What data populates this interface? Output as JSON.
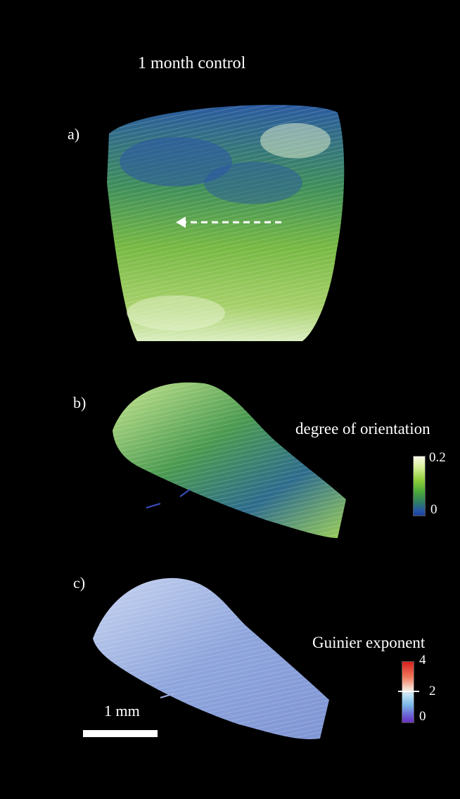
{
  "title": "1 month control",
  "panels": [
    {
      "label": "a)"
    },
    {
      "label": "b)"
    },
    {
      "label": "c)"
    }
  ],
  "colorbars": {
    "orientation": {
      "title": "degree of orientation",
      "max": "0.2",
      "min": "0",
      "colors": [
        "#f8fbe8",
        "#8fcf3a",
        "#2f7c64",
        "#1f3f9a"
      ]
    },
    "guinier": {
      "title": "Guinier exponent",
      "max": "4",
      "mid": "2",
      "min": "0",
      "colors": [
        "#d6201f",
        "#f7e1d6",
        "#7bb6e8",
        "#6a2fc0"
      ]
    }
  },
  "scalebar": {
    "label": "1 mm"
  }
}
